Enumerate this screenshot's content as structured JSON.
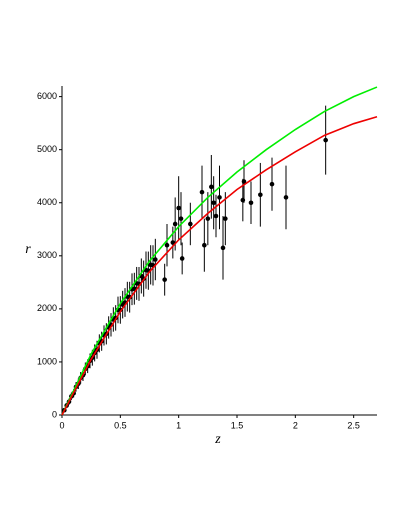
{
  "chart_data": {
    "type": "scatter",
    "x_label": "z",
    "y_label": "r",
    "xlim": [
      0,
      2.7
    ],
    "ylim": [
      0,
      6200
    ],
    "xticks": [
      0,
      0.5,
      1,
      1.5,
      2,
      2.5
    ],
    "yticks": [
      0,
      1000,
      2000,
      3000,
      4000,
      5000,
      6000
    ],
    "series": [
      {
        "type": "scatter",
        "color": "#000000",
        "x": [
          0.02,
          0.04,
          0.06,
          0.08,
          0.1,
          0.12,
          0.14,
          0.16,
          0.18,
          0.2,
          0.22,
          0.24,
          0.26,
          0.28,
          0.3,
          0.32,
          0.34,
          0.36,
          0.38,
          0.4,
          0.42,
          0.44,
          0.46,
          0.48,
          0.5,
          0.52,
          0.54,
          0.56,
          0.58,
          0.6,
          0.62,
          0.64,
          0.66,
          0.68,
          0.7,
          0.72,
          0.74,
          0.76,
          0.78,
          0.8,
          0.88,
          0.9,
          0.95,
          0.97,
          1.0,
          1.02,
          1.03,
          1.1,
          1.2,
          1.22,
          1.25,
          1.28,
          1.3,
          1.32,
          1.35,
          1.38,
          1.4,
          1.55,
          1.56,
          1.62,
          1.7,
          1.8,
          1.92,
          2.26
        ],
        "values": [
          90,
          180,
          250,
          350,
          410,
          530,
          590,
          700,
          750,
          870,
          920,
          1020,
          1080,
          1170,
          1230,
          1350,
          1390,
          1500,
          1530,
          1650,
          1700,
          1800,
          1830,
          1980,
          1980,
          2080,
          2120,
          2230,
          2220,
          2370,
          2380,
          2480,
          2470,
          2620,
          2570,
          2730,
          2720,
          2830,
          2820,
          2930,
          2550,
          3200,
          3250,
          3600,
          3900,
          3700,
          2950,
          3600,
          4200,
          3200,
          3700,
          4300,
          4000,
          3750,
          4100,
          3150,
          3700,
          4050,
          4400,
          4000,
          4150,
          4350,
          4100,
          5180
        ],
        "errors": [
          40,
          50,
          60,
          70,
          80,
          90,
          100,
          110,
          110,
          120,
          130,
          140,
          150,
          160,
          170,
          170,
          180,
          190,
          200,
          210,
          220,
          230,
          240,
          250,
          260,
          260,
          270,
          280,
          290,
          300,
          300,
          310,
          320,
          330,
          340,
          350,
          360,
          370,
          380,
          390,
          300,
          400,
          300,
          500,
          600,
          500,
          300,
          400,
          500,
          500,
          500,
          600,
          500,
          400,
          600,
          600,
          500,
          400,
          400,
          400,
          600,
          500,
          600,
          650
        ]
      },
      {
        "type": "line",
        "color": "#00ee00",
        "x": [
          0,
          0.25,
          0.5,
          0.75,
          1,
          1.25,
          1.5,
          1.75,
          2,
          2.25,
          2.5,
          2.7
        ],
        "values": [
          0,
          1150,
          2100,
          2900,
          3550,
          4100,
          4580,
          5000,
          5380,
          5720,
          6000,
          6180
        ]
      },
      {
        "type": "line",
        "color": "#ee0000",
        "x": [
          0,
          0.25,
          0.5,
          0.75,
          1,
          1.25,
          1.5,
          1.75,
          2,
          2.25,
          2.5,
          2.7
        ],
        "values": [
          0,
          1050,
          1950,
          2700,
          3300,
          3800,
          4250,
          4620,
          4960,
          5270,
          5490,
          5620
        ]
      }
    ]
  }
}
